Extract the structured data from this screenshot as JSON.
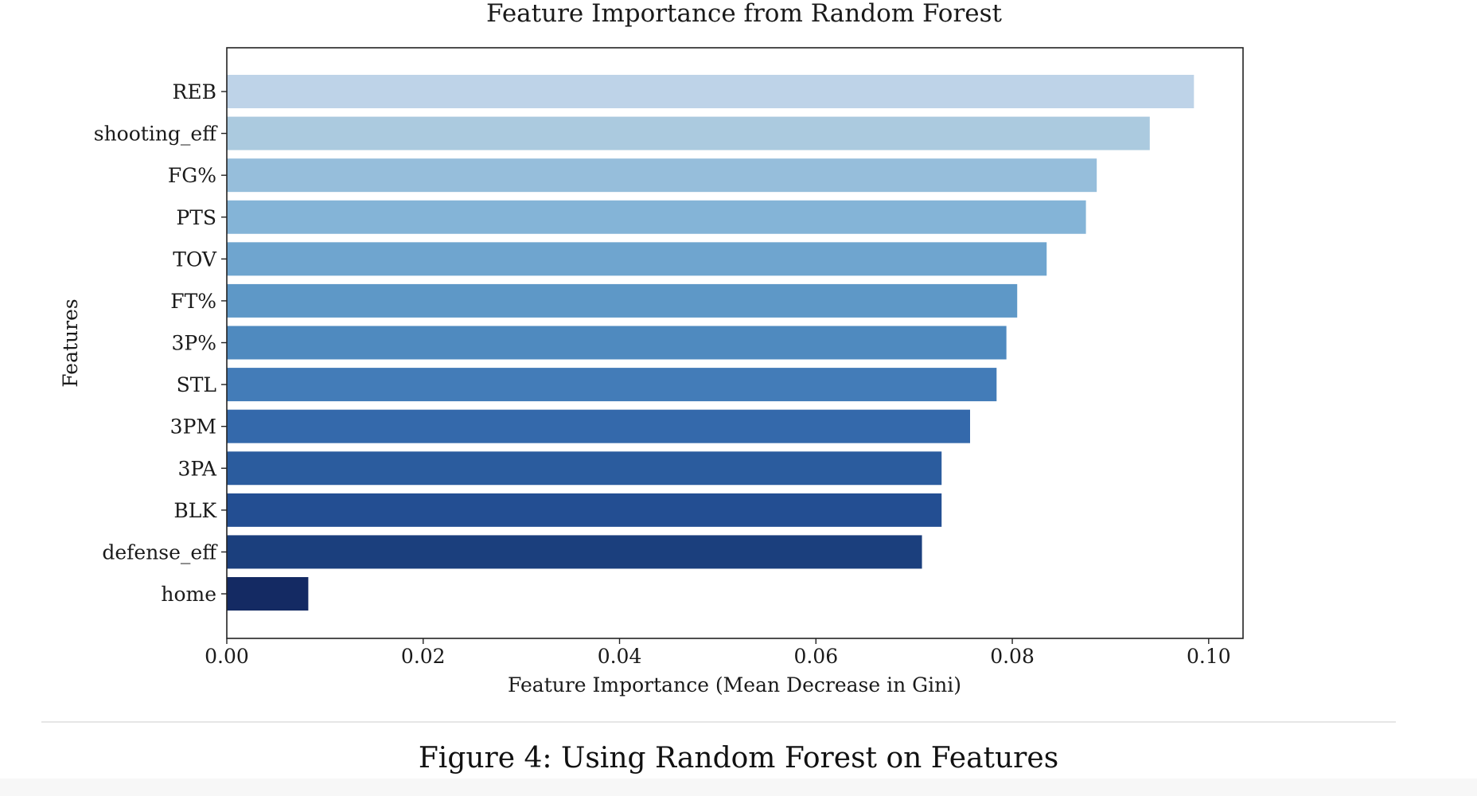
{
  "chart_data": {
    "type": "bar",
    "orientation": "horizontal",
    "title": "Feature Importance from Random Forest",
    "xlabel": "Feature Importance (Mean Decrease in Gini)",
    "ylabel": "Features",
    "xlim": [
      0,
      0.1035
    ],
    "xticks": [
      "0.00",
      "0.02",
      "0.04",
      "0.06",
      "0.08",
      "0.10"
    ],
    "grid": false,
    "legend": "none",
    "categories": [
      "REB",
      "shooting_eff",
      "FG%",
      "PTS",
      "TOV",
      "FT%",
      "3P%",
      "STL",
      "3PM",
      "3PA",
      "BLK",
      "defense_eff",
      "home"
    ],
    "values": [
      0.0985,
      0.094,
      0.0886,
      0.0875,
      0.0835,
      0.0805,
      0.0794,
      0.0784,
      0.0757,
      0.0728,
      0.0728,
      0.0708,
      0.0083
    ],
    "colors": [
      "#bed3e8",
      "#abcadf",
      "#96bedb",
      "#84b4d7",
      "#6fa5cf",
      "#5e98c7",
      "#4f8abf",
      "#437cb8",
      "#3469ab",
      "#2b5c9e",
      "#234e92",
      "#1b3f7d",
      "#142a63"
    ]
  },
  "caption": "Figure 4: Using Random Forest on Features"
}
